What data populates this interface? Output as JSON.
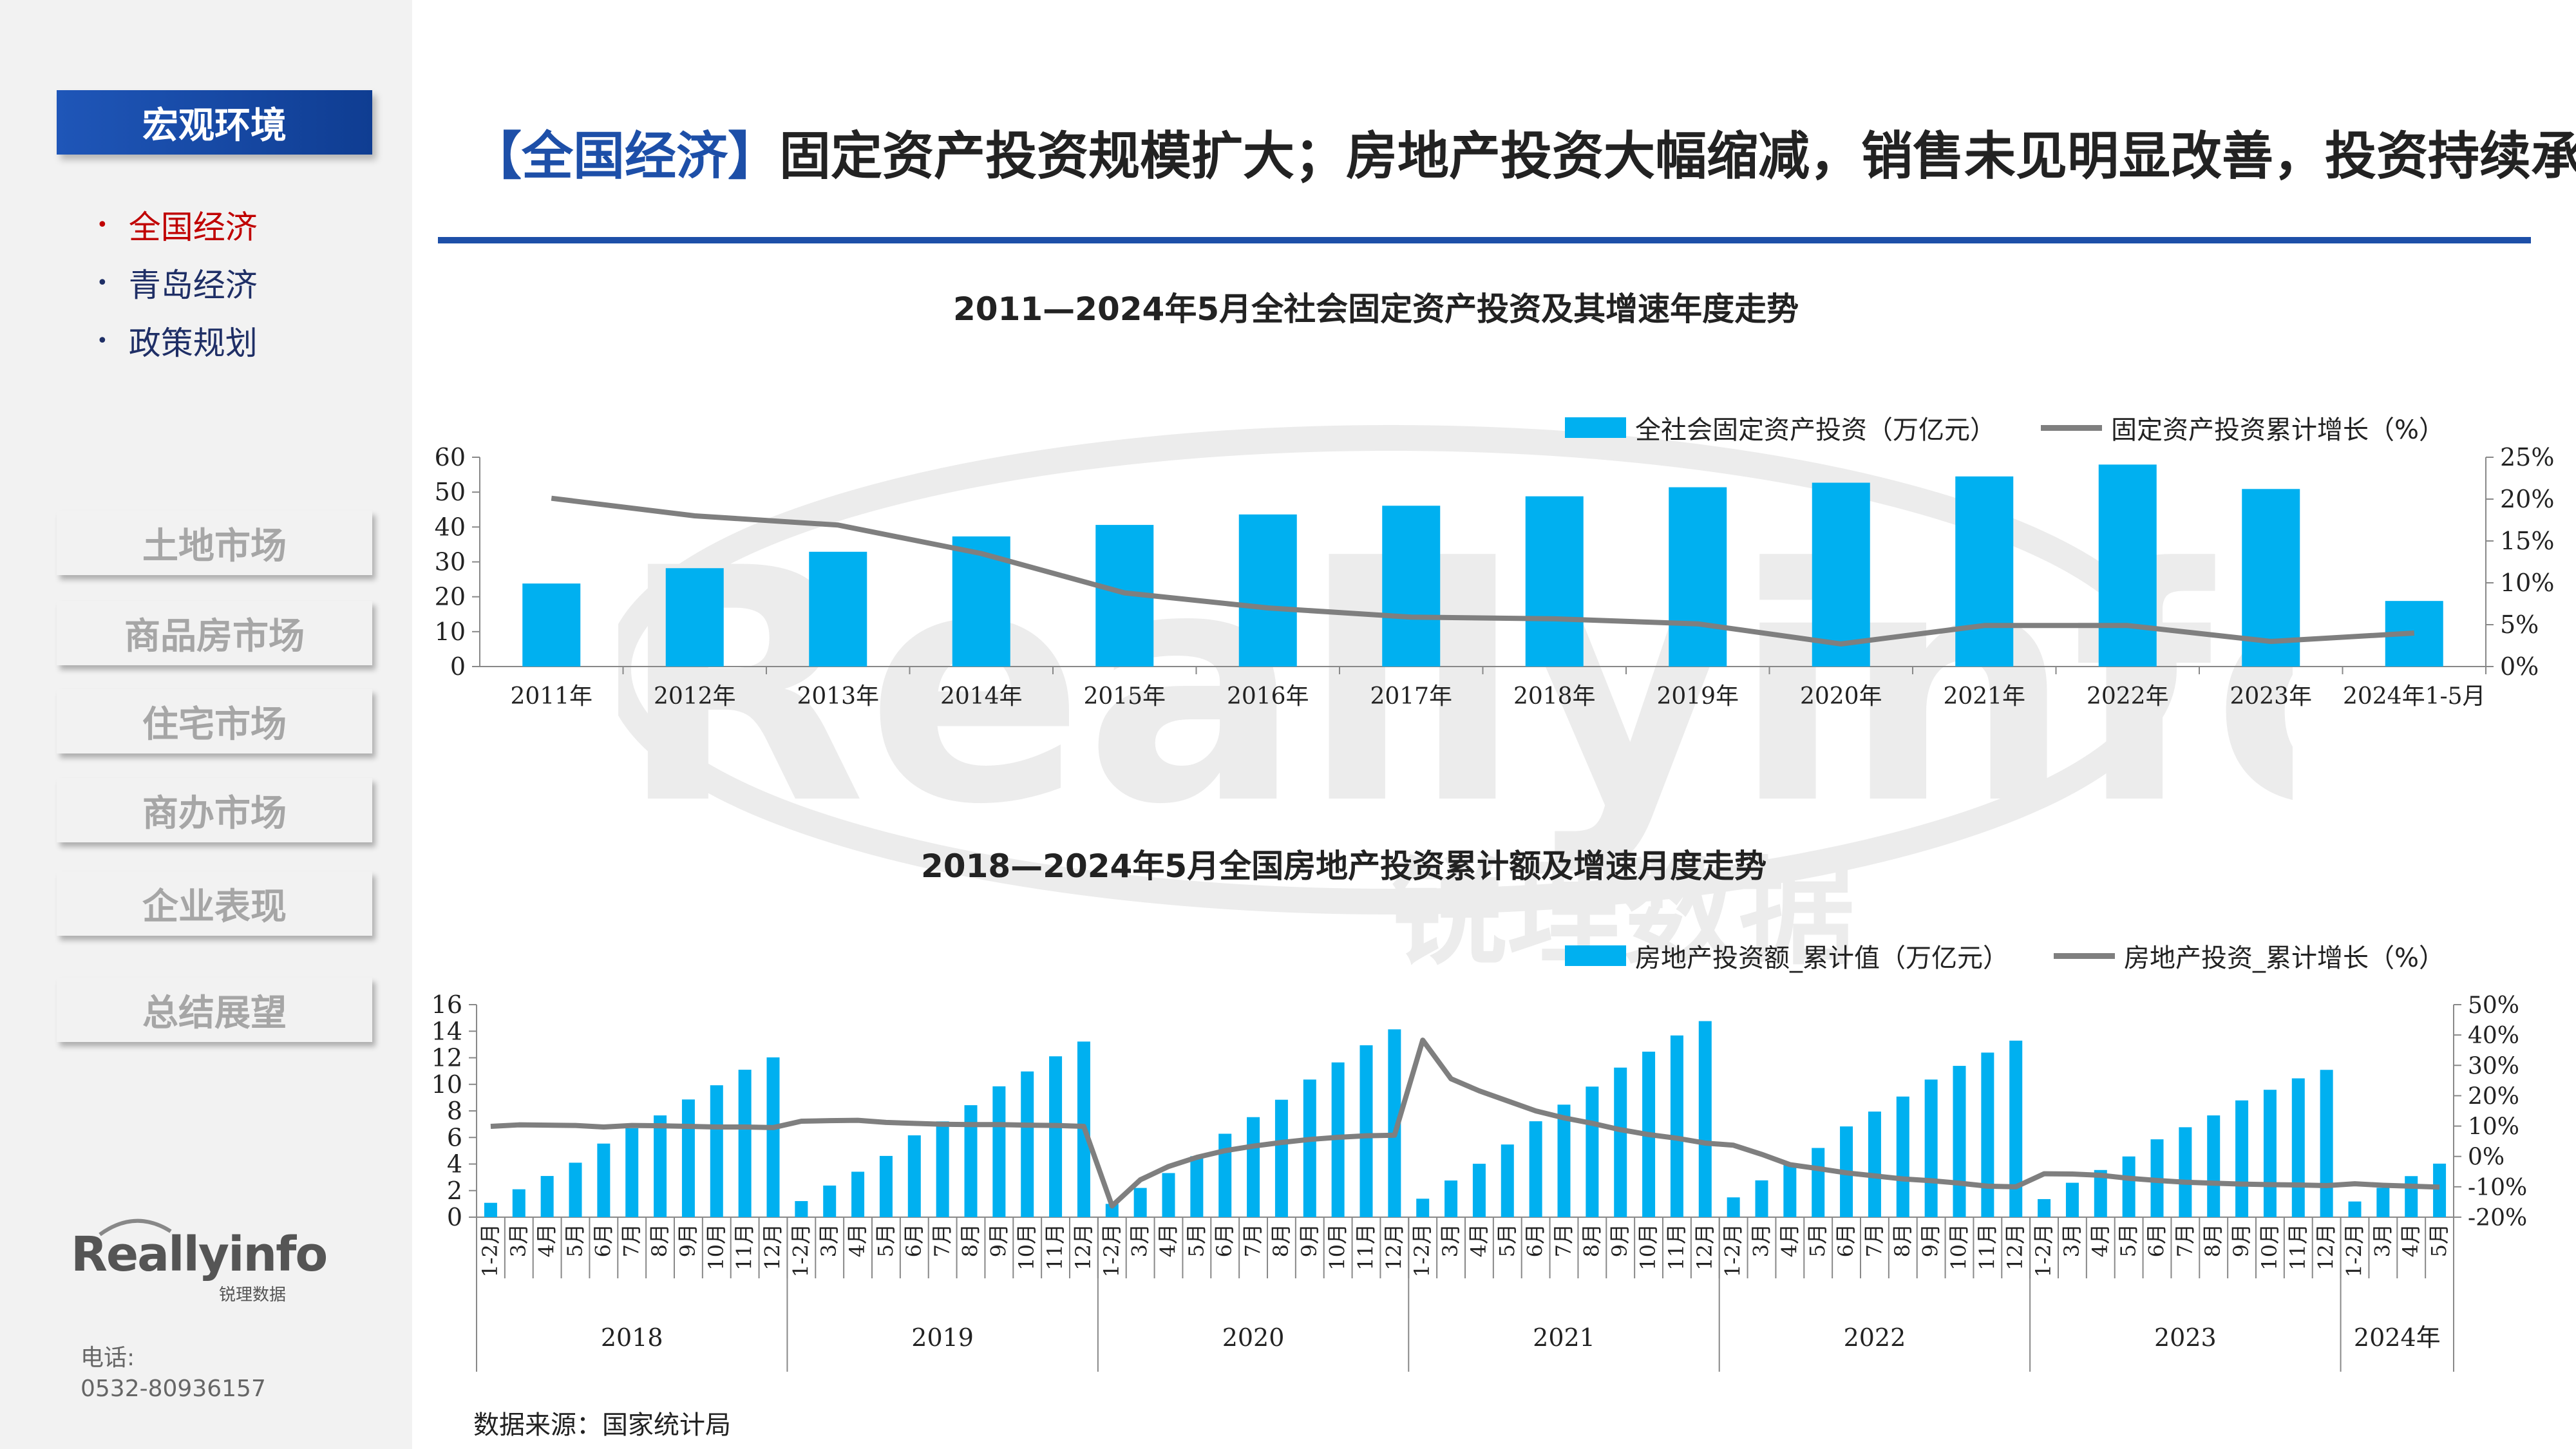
{
  "sidebar": {
    "section_title": "宏观环境",
    "sub_items": [
      {
        "label": "全国经济",
        "active": true
      },
      {
        "label": "青岛经济",
        "active": false
      },
      {
        "label": "政策规划",
        "active": false
      }
    ],
    "nav_buttons": [
      "土地市场",
      "商品房市场",
      "住宅市场",
      "商办市场",
      "企业表现",
      "总结展望"
    ],
    "logo_text": "Reallyinfo",
    "logo_cn": "锐理数据",
    "phone_label": "电话:",
    "phone_number": "0532-80936157"
  },
  "header": {
    "title_bracket": "【全国经济】",
    "title_text": "固定资产投资规模扩大；房地产投资大幅缩减，销售未见明显改善，投资持续承压"
  },
  "watermark": {
    "text": "Reallyinfo",
    "cn": "锐理数据"
  },
  "source": "数据来源：国家统计局",
  "colors": {
    "accent": "#1d4fa8",
    "bar": "#00b0f0",
    "line": "#7f7f7f",
    "active": "#c00000"
  },
  "chart_data": [
    {
      "type": "bar",
      "title": "2011—2024年5月全社会固定资产投资及其增速年度走势",
      "categories": [
        "2011年",
        "2012年",
        "2013年",
        "2014年",
        "2015年",
        "2016年",
        "2017年",
        "2018年",
        "2019年",
        "2020年",
        "2021年",
        "2022年",
        "2023年",
        "2024年1-5月"
      ],
      "series": [
        {
          "name": "全社会固定资产投资（万亿元）",
          "type": "bar",
          "axis": "left",
          "values": [
            23.8,
            28.2,
            32.9,
            37.3,
            40.6,
            43.6,
            46.1,
            48.8,
            51.4,
            52.7,
            54.5,
            57.9,
            50.9,
            18.8
          ]
        },
        {
          "name": "固定资产投资累计增长（%）",
          "type": "line",
          "axis": "right",
          "values": [
            20.1,
            18.0,
            16.9,
            13.5,
            8.8,
            7.0,
            5.9,
            5.7,
            5.1,
            2.7,
            4.9,
            4.9,
            3.0,
            4.0
          ]
        }
      ],
      "ylim": [
        0,
        60
      ],
      "yticks": [
        "0",
        "10",
        "20",
        "30",
        "40",
        "50",
        "60"
      ],
      "y2lim": [
        0,
        25
      ],
      "y2ticks": [
        "0%",
        "5%",
        "10%",
        "15%",
        "20%",
        "25%"
      ],
      "legend": "top-right",
      "grid": false
    },
    {
      "type": "bar",
      "title": "2018—2024年5月全国房地产投资累计额及增速月度走势",
      "month_labels": [
        "1-2月",
        "3月",
        "4月",
        "5月",
        "6月",
        "7月",
        "8月",
        "9月",
        "10月",
        "11月",
        "12月"
      ],
      "month_labels_2024": [
        "1-2月",
        "3月",
        "4月",
        "5月"
      ],
      "year_groups": [
        "2018",
        "2019",
        "2020",
        "2021",
        "2022",
        "2023",
        "2024年"
      ],
      "series": [
        {
          "name": "房地产投资额_累计值（万亿元）",
          "type": "bar",
          "axis": "left",
          "values": [
            1.08,
            2.1,
            3.1,
            4.1,
            5.54,
            6.7,
            7.66,
            8.86,
            9.93,
            11.1,
            12.03,
            1.21,
            2.38,
            3.42,
            4.61,
            6.16,
            7.21,
            8.43,
            9.85,
            10.97,
            12.11,
            13.22,
            1.0,
            2.2,
            3.32,
            4.59,
            6.28,
            7.53,
            8.84,
            10.36,
            11.65,
            12.94,
            14.14,
            1.39,
            2.76,
            4.02,
            5.47,
            7.22,
            8.47,
            9.83,
            11.26,
            12.46,
            13.68,
            14.76,
            1.49,
            2.77,
            3.92,
            5.21,
            6.83,
            7.95,
            9.08,
            10.36,
            11.39,
            12.39,
            13.29,
            1.36,
            2.59,
            3.55,
            4.57,
            5.86,
            6.77,
            7.66,
            8.79,
            9.59,
            10.45,
            11.09,
            1.18,
            2.21,
            3.09,
            4.03
          ]
        },
        {
          "name": "房地产投资_累计增长（%）",
          "type": "line",
          "axis": "right",
          "values": [
            9.9,
            10.4,
            10.3,
            10.2,
            9.7,
            10.2,
            10.1,
            9.9,
            9.7,
            9.7,
            9.5,
            11.6,
            11.8,
            11.9,
            11.2,
            10.9,
            10.6,
            10.5,
            10.5,
            10.3,
            10.2,
            9.9,
            -16.3,
            -7.7,
            -3.3,
            -0.3,
            1.9,
            3.4,
            4.6,
            5.6,
            6.3,
            6.8,
            7.0,
            38.3,
            25.6,
            21.6,
            18.3,
            15.0,
            12.7,
            10.9,
            8.8,
            7.2,
            6.0,
            4.4,
            3.7,
            0.7,
            -2.7,
            -4.0,
            -5.4,
            -6.4,
            -7.4,
            -8.0,
            -8.8,
            -9.8,
            -10.0,
            -5.7,
            -5.8,
            -6.2,
            -7.2,
            -7.9,
            -8.5,
            -8.8,
            -9.1,
            -9.3,
            -9.4,
            -9.6,
            -9.0,
            -9.5,
            -9.8,
            -10.1
          ]
        }
      ],
      "ylim": [
        0,
        16
      ],
      "yticks": [
        "0",
        "2",
        "4",
        "6",
        "8",
        "10",
        "12",
        "14",
        "16"
      ],
      "y2lim": [
        -20,
        50
      ],
      "y2ticks": [
        "-20%",
        "-10%",
        "0%",
        "10%",
        "20%",
        "30%",
        "40%",
        "50%"
      ],
      "legend": "top-right",
      "grid": false
    }
  ]
}
